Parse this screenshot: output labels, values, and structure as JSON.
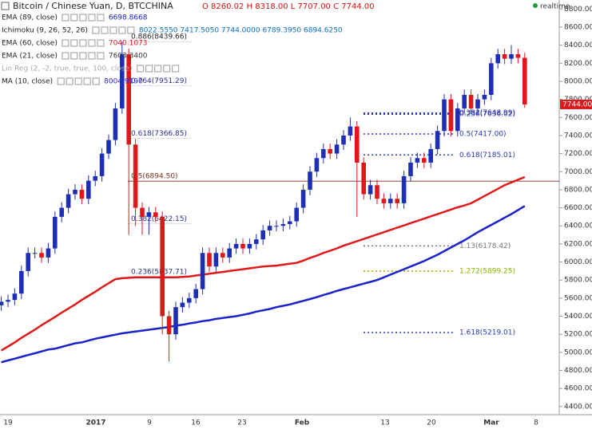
{
  "header": {
    "symbol": "Bitcoin / Chinese Yuan, D, BTCCHINA",
    "ohlc": "O 8260.02 H 8318.00 L 7707.00 C 7744.00",
    "status": "realtime"
  },
  "indicators": [
    {
      "name": "Ichimoku (9, 26, 52, 26)",
      "value": "8022.5550 7417.5050 7744.0000 6789.3950 6894.6250",
      "color": "#0b6fc2"
    },
    {
      "name": "EMA (21, close)",
      "value": "7603.3400",
      "color": "#333333"
    },
    {
      "name": "Lin Reg (2, -2, true, true, 100, close)",
      "value": "",
      "color": "#aaaaaa"
    },
    {
      "name": "MA (10, close)",
      "value": "8004.9190",
      "color": "#2a2ad0"
    }
  ],
  "chart_data": {
    "type": "candlestick",
    "up_color": "#1f2fb5",
    "down_color": "#e0161b",
    "open": [
      5520,
      5560,
      5580,
      5650,
      5900,
      6100,
      6100,
      6050,
      6150,
      6500,
      6600,
      6750,
      6800,
      6700,
      6900,
      6950,
      7200,
      7350,
      7700,
      8300,
      7300,
      6600,
      6500,
      6550,
      6500,
      5400,
      5200,
      5500,
      5550,
      5600,
      5700,
      6100,
      5950,
      6100,
      6050,
      6150,
      6200,
      6150,
      6200,
      6250,
      6350,
      6400,
      6400,
      6420,
      6450,
      6600,
      6800,
      7000,
      7150,
      7250,
      7200,
      7300,
      7400,
      7500,
      7100,
      6750,
      6850,
      6700,
      6650,
      6700,
      6650,
      6950,
      7100,
      7150,
      7100,
      7250,
      7450,
      7800,
      7450,
      7700,
      7850,
      7700,
      7800,
      7850,
      8200,
      8300,
      8250,
      8300,
      8260
    ],
    "high": [
      5620,
      5640,
      5710,
      5960,
      6160,
      6160,
      6160,
      6210,
      6560,
      6660,
      6810,
      6860,
      6860,
      6960,
      7010,
      7260,
      7410,
      7760,
      8440,
      8360,
      7360,
      6660,
      6610,
      6610,
      6560,
      5460,
      5560,
      5610,
      5660,
      5760,
      6160,
      6160,
      6160,
      6160,
      6210,
      6260,
      6260,
      6260,
      6310,
      6410,
      6460,
      6460,
      6480,
      6510,
      6660,
      6860,
      7060,
      7210,
      7310,
      7310,
      7360,
      7460,
      7600,
      7560,
      7160,
      6910,
      6910,
      6760,
      6760,
      6760,
      7010,
      7160,
      7210,
      7210,
      7310,
      7510,
      7860,
      7860,
      7760,
      7910,
      7910,
      7860,
      7910,
      8260,
      8360,
      8360,
      8400,
      8360,
      8318
    ],
    "low": [
      5460,
      5500,
      5520,
      5590,
      5840,
      6040,
      5990,
      5990,
      6090,
      6440,
      6540,
      6690,
      6640,
      6640,
      6840,
      6890,
      7140,
      7290,
      7640,
      6300,
      6400,
      6300,
      6300,
      6440,
      5200,
      4900,
      5140,
      5440,
      5490,
      5540,
      5640,
      5890,
      5890,
      5990,
      5990,
      6090,
      6090,
      6090,
      6140,
      6190,
      6290,
      6340,
      6340,
      6360,
      6390,
      6540,
      6740,
      6940,
      7090,
      7140,
      7140,
      7240,
      7340,
      6500,
      6690,
      6690,
      6640,
      6590,
      6590,
      6590,
      6590,
      6890,
      7040,
      7040,
      7040,
      7190,
      7390,
      7390,
      7390,
      7640,
      7640,
      7640,
      7740,
      7790,
      8140,
      8190,
      8190,
      8200,
      7707
    ],
    "close": [
      5560,
      5580,
      5650,
      5900,
      6100,
      6100,
      6050,
      6150,
      6500,
      6600,
      6750,
      6800,
      6700,
      6900,
      6950,
      7200,
      7350,
      7700,
      8300,
      7300,
      6600,
      6500,
      6550,
      6500,
      5400,
      5200,
      5500,
      5550,
      5600,
      5700,
      6100,
      5950,
      6100,
      6050,
      6150,
      6200,
      6150,
      6200,
      6250,
      6350,
      6400,
      6400,
      6420,
      6450,
      6600,
      6800,
      7000,
      7150,
      7250,
      7200,
      7300,
      7400,
      7500,
      7100,
      6750,
      6850,
      6700,
      6650,
      6700,
      6650,
      6950,
      7100,
      7150,
      7100,
      7250,
      7450,
      7800,
      7450,
      7700,
      7850,
      7700,
      7800,
      7850,
      8200,
      8300,
      8250,
      8300,
      8260,
      7744
    ],
    "last_price_label": "7744.00",
    "series": [
      {
        "name": "EMA (89, close)",
        "legend_value": "6698.8668",
        "color": "#1a22cc",
        "width": 2.5,
        "values": [
          4890,
          4910,
          4930,
          4950,
          4970,
          4990,
          5010,
          5030,
          5040,
          5060,
          5080,
          5100,
          5110,
          5130,
          5150,
          5165,
          5180,
          5195,
          5210,
          5220,
          5230,
          5240,
          5250,
          5260,
          5270,
          5280,
          5295,
          5305,
          5320,
          5330,
          5345,
          5355,
          5370,
          5380,
          5390,
          5400,
          5415,
          5430,
          5450,
          5465,
          5480,
          5500,
          5515,
          5530,
          5550,
          5570,
          5590,
          5610,
          5635,
          5655,
          5680,
          5700,
          5720,
          5740,
          5760,
          5780,
          5800,
          5830,
          5860,
          5890,
          5920,
          5950,
          5980,
          6010,
          6045,
          6080,
          6120,
          6160,
          6200,
          6240,
          6285,
          6330,
          6370,
          6410,
          6450,
          6490,
          6530,
          6575,
          6620
        ]
      },
      {
        "name": "EMA (60, close)",
        "legend_value": "7040.1073",
        "color": "#e01818",
        "width": 2.5,
        "values": [
          5020,
          5065,
          5110,
          5160,
          5205,
          5250,
          5300,
          5345,
          5390,
          5440,
          5485,
          5530,
          5580,
          5625,
          5670,
          5720,
          5765,
          5810,
          5820,
          5825,
          5830,
          5830,
          5830,
          5830,
          5830,
          5830,
          5830,
          5835,
          5840,
          5850,
          5860,
          5870,
          5880,
          5890,
          5900,
          5910,
          5920,
          5930,
          5940,
          5950,
          5955,
          5960,
          5970,
          5980,
          5990,
          6015,
          6045,
          6070,
          6100,
          6125,
          6150,
          6180,
          6205,
          6230,
          6255,
          6280,
          6305,
          6330,
          6355,
          6380,
          6405,
          6430,
          6455,
          6480,
          6505,
          6530,
          6555,
          6580,
          6605,
          6625,
          6650,
          6690,
          6730,
          6770,
          6810,
          6850,
          6880,
          6910,
          6940
        ]
      }
    ],
    "ylim": [
      4310,
      8900
    ],
    "yticks": [
      {
        "value": 4400,
        "label": "4400.00"
      },
      {
        "value": 4600,
        "label": "4600.00"
      },
      {
        "value": 4800,
        "label": "4800.00"
      },
      {
        "value": 5000,
        "label": "5000.00"
      },
      {
        "value": 5200,
        "label": "5200.00"
      },
      {
        "value": 5400,
        "label": "5400.00"
      },
      {
        "value": 5600,
        "label": "5600.00"
      },
      {
        "value": 5800,
        "label": "5800.00"
      },
      {
        "value": 6000,
        "label": "6000.00"
      },
      {
        "value": 6200,
        "label": "6200.00"
      },
      {
        "value": 6400,
        "label": "6400.00"
      },
      {
        "value": 6600,
        "label": "6600.00"
      },
      {
        "value": 6800,
        "label": "6800.00"
      },
      {
        "value": 7000,
        "label": "7000.00"
      },
      {
        "value": 7200,
        "label": "7200.00"
      },
      {
        "value": 7400,
        "label": "7400.00"
      },
      {
        "value": 7600,
        "label": "7600.00"
      },
      {
        "value": 7800,
        "label": "7800.00"
      },
      {
        "value": 8000,
        "label": "8000.00"
      },
      {
        "value": 8200,
        "label": "8200.00"
      },
      {
        "value": 8400,
        "label": "8400.00"
      },
      {
        "value": 8600,
        "label": "8600.00"
      },
      {
        "value": 8800,
        "label": "8800.00"
      }
    ],
    "x_tick_labels": [
      "19",
      "2017",
      "9",
      "16",
      "23",
      "Feb",
      "13",
      "20",
      "Mar",
      "8"
    ],
    "fib_retracement": [
      {
        "value": 8439.66,
        "label": "0.886(8439.66)",
        "color": "#222222"
      },
      {
        "value": 7951.29,
        "label": "0.764(7951.29)",
        "color": "#2b2f8f"
      },
      {
        "value": 7366.85,
        "label": "0.618(7366.85)",
        "color": "#2b2f8f"
      },
      {
        "value": 6894.5,
        "label": "0.5(6894.50)",
        "color": "#7a2a1a",
        "line": true
      },
      {
        "value": 6422.15,
        "label": "0.382(6422.15)",
        "color": "#2b2f8f"
      },
      {
        "value": 5837.71,
        "label": "0.236(5837.71)",
        "color": "#2b2f8f"
      }
    ],
    "fib_extension": [
      {
        "value": 7636.02,
        "label": "0.236(7636.02)",
        "color": "#2b36b8"
      },
      {
        "value": 7648.99,
        "label": "0.382(7648.99)",
        "color": "#2b36b8"
      },
      {
        "value": 7417.0,
        "label": "0.5(7417.00)",
        "color": "#2b36b8"
      },
      {
        "value": 7185.01,
        "label": "0.618(7185.01)",
        "color": "#2b36b8"
      },
      {
        "value": 6178.42,
        "label": "1.13(6178.42)",
        "color": "#777777"
      },
      {
        "value": 5899.25,
        "label": "1.272(5899.25)",
        "color": "#8cb400"
      },
      {
        "value": 5219.01,
        "label": "1.618(5219.01)",
        "color": "#2b36b8"
      }
    ]
  }
}
